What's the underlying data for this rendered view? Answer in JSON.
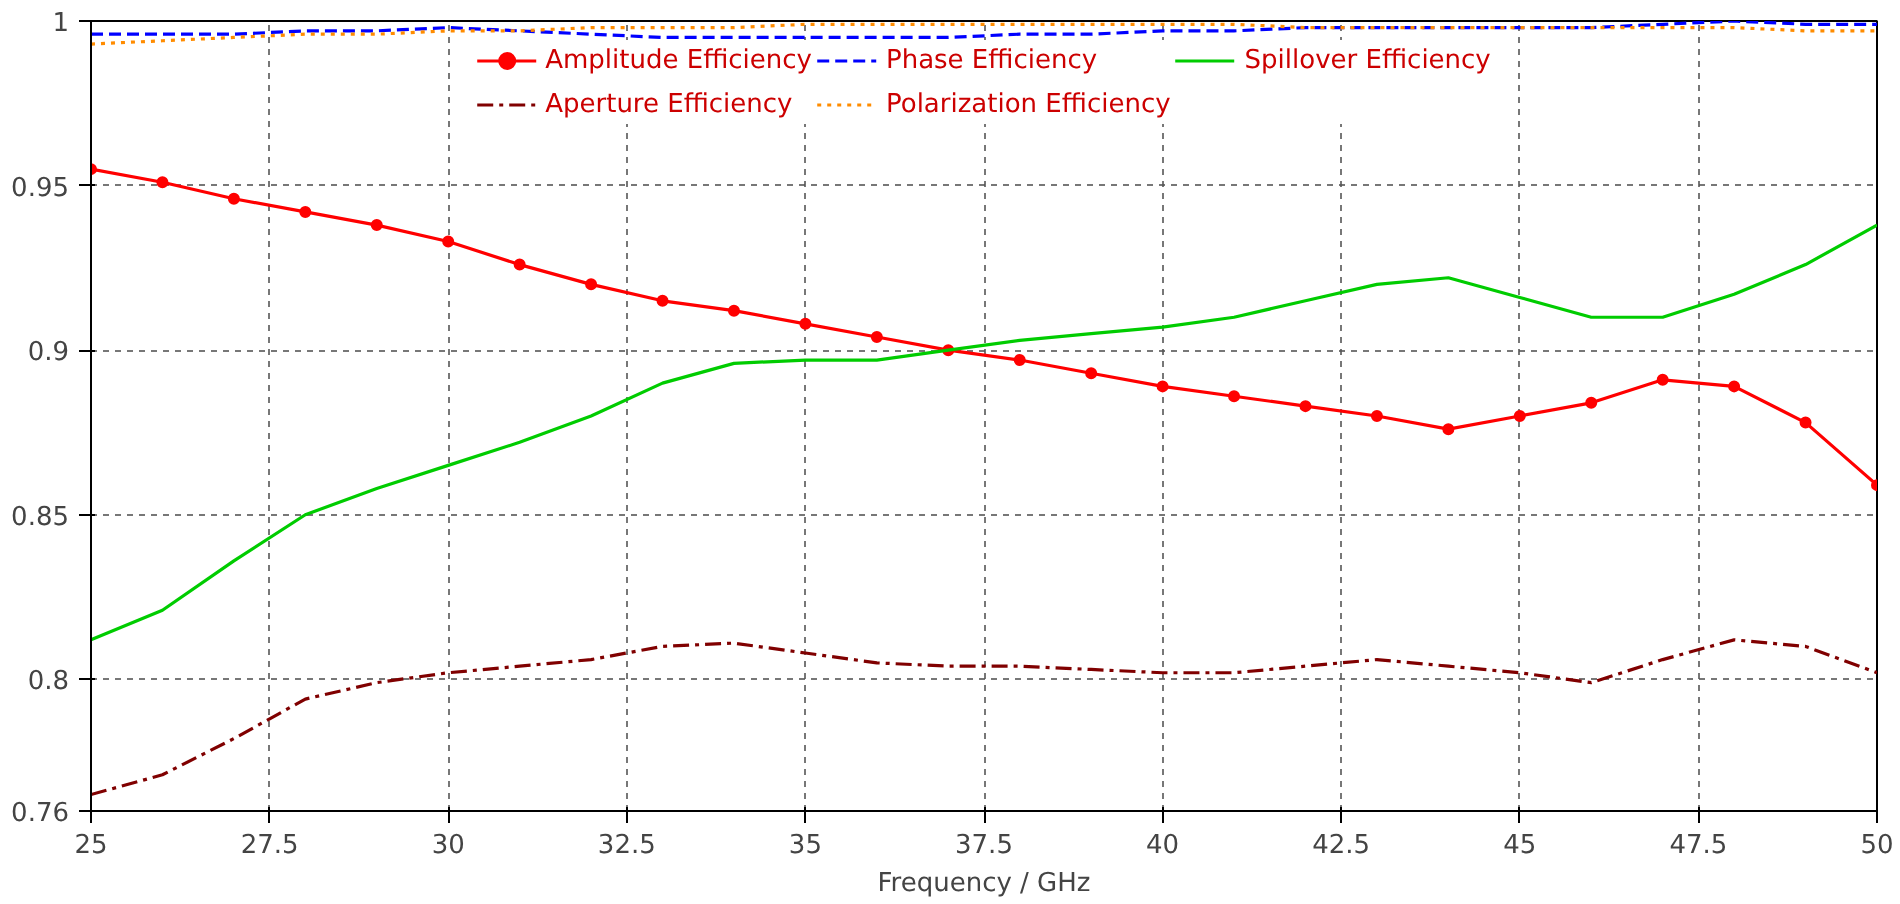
{
  "chart_data": {
    "type": "line",
    "xlabel": "Frequency / GHz",
    "x": [
      25,
      26,
      27,
      28,
      29,
      30,
      31,
      32,
      33,
      34,
      35,
      36,
      37,
      38,
      39,
      40,
      41,
      42,
      43,
      44,
      45,
      46,
      47,
      48,
      49,
      50
    ],
    "xlim": [
      25,
      50
    ],
    "xticks": [
      25,
      27.5,
      30,
      32.5,
      35,
      37.5,
      40,
      42.5,
      45,
      47.5,
      50
    ],
    "ylim": [
      0.76,
      1
    ],
    "yticks": [
      0.76,
      0.8,
      0.85,
      0.9,
      0.95,
      1
    ],
    "grid": true,
    "legend": "top",
    "series": [
      {
        "name": "Amplitude Efficiency",
        "color": "#ff0000",
        "line_style": "solid",
        "marker": "circle",
        "values": [
          0.955,
          0.951,
          0.946,
          0.942,
          0.938,
          0.933,
          0.926,
          0.92,
          0.915,
          0.912,
          0.908,
          0.904,
          0.9,
          0.897,
          0.893,
          0.889,
          0.886,
          0.883,
          0.88,
          0.876,
          0.88,
          0.884,
          0.891,
          0.889,
          0.878,
          0.859
        ]
      },
      {
        "name": "Aperture Efficiency",
        "color": "#800000",
        "line_style": "dashdot",
        "marker": "none",
        "values": [
          0.765,
          0.771,
          0.782,
          0.794,
          0.799,
          0.802,
          0.804,
          0.806,
          0.81,
          0.811,
          0.808,
          0.805,
          0.804,
          0.804,
          0.803,
          0.802,
          0.802,
          0.804,
          0.806,
          0.804,
          0.802,
          0.799,
          0.806,
          0.812,
          0.81,
          0.802
        ]
      },
      {
        "name": "Phase Efficiency",
        "color": "#0000ff",
        "line_style": "dashed",
        "marker": "none",
        "values": [
          0.996,
          0.996,
          0.996,
          0.997,
          0.997,
          0.998,
          0.997,
          0.996,
          0.995,
          0.995,
          0.995,
          0.995,
          0.995,
          0.996,
          0.996,
          0.997,
          0.997,
          0.998,
          0.998,
          0.998,
          0.998,
          0.998,
          0.999,
          1.0,
          0.999,
          0.999
        ]
      },
      {
        "name": "Polarization Efficiency",
        "color": "#ff8c00",
        "line_style": "dotted",
        "marker": "none",
        "values": [
          0.993,
          0.994,
          0.995,
          0.996,
          0.996,
          0.997,
          0.997,
          0.998,
          0.998,
          0.998,
          0.999,
          0.999,
          0.999,
          0.999,
          0.999,
          0.999,
          0.999,
          0.998,
          0.998,
          0.998,
          0.998,
          0.998,
          0.998,
          0.998,
          0.997,
          0.997
        ]
      },
      {
        "name": "Spillover Efficiency",
        "color": "#00cc00",
        "line_style": "solid",
        "marker": "none",
        "values": [
          0.812,
          0.821,
          0.836,
          0.85,
          0.858,
          0.865,
          0.872,
          0.88,
          0.89,
          0.896,
          0.897,
          0.897,
          0.9,
          0.903,
          0.905,
          0.907,
          0.91,
          0.915,
          0.92,
          0.922,
          0.916,
          0.91,
          0.91,
          0.917,
          0.926,
          0.938
        ]
      }
    ]
  }
}
